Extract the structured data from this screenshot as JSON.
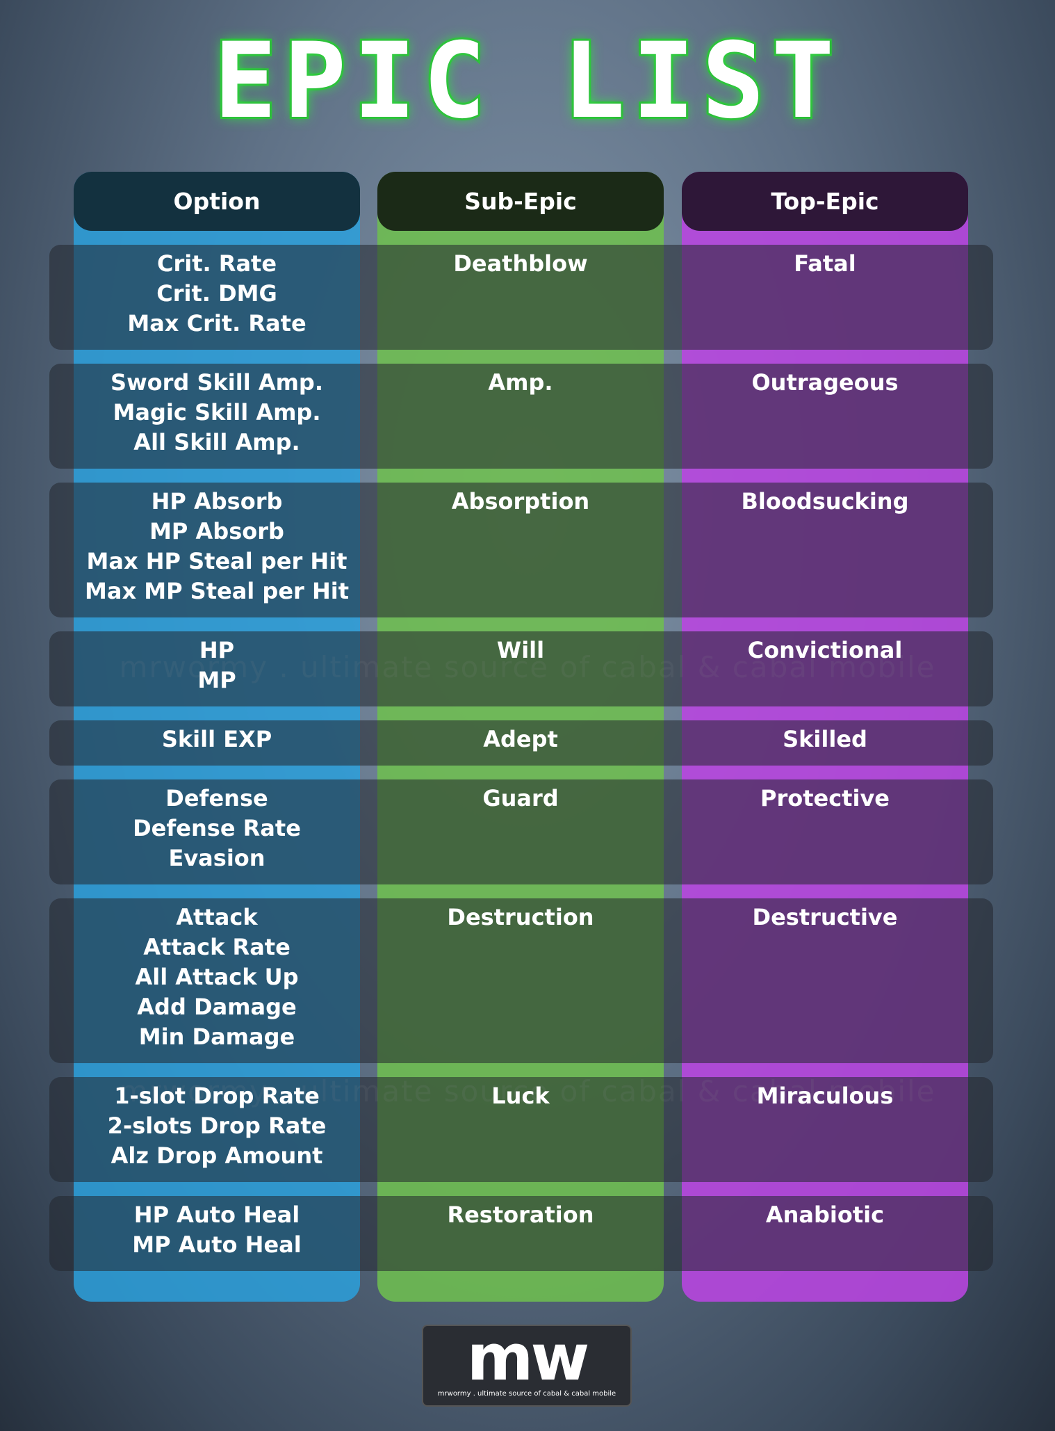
{
  "title": "EPIC LIST",
  "headers": [
    "Option",
    "Sub-Epic",
    "Top-Epic"
  ],
  "rows": [
    {
      "option": [
        "Crit. Rate",
        "Crit. DMG",
        "Max Crit. Rate"
      ],
      "sub_epic": "Deathblow",
      "top_epic": "Fatal"
    },
    {
      "option": [
        "Sword Skill Amp.",
        "Magic Skill Amp.",
        "All Skill Amp."
      ],
      "sub_epic": "Amp.",
      "top_epic": "Outrageous"
    },
    {
      "option": [
        "HP Absorb",
        "MP Absorb",
        "Max HP Steal per Hit",
        "Max MP Steal per Hit"
      ],
      "sub_epic": "Absorption",
      "top_epic": "Bloodsucking"
    },
    {
      "option": [
        "HP",
        "MP"
      ],
      "sub_epic": "Will",
      "top_epic": "Convictional"
    },
    {
      "option": [
        "Skill EXP"
      ],
      "sub_epic": "Adept",
      "top_epic": "Skilled"
    },
    {
      "option": [
        "Defense",
        "Defense Rate",
        "Evasion"
      ],
      "sub_epic": "Guard",
      "top_epic": "Protective"
    },
    {
      "option": [
        "Attack",
        "Attack Rate",
        "All Attack Up",
        "Add Damage",
        "Min Damage"
      ],
      "sub_epic": "Destruction",
      "top_epic": "Destructive"
    },
    {
      "option": [
        "1-slot Drop Rate",
        "2-slots Drop Rate",
        "Alz Drop Amount"
      ],
      "sub_epic": "Luck",
      "top_epic": "Miraculous"
    },
    {
      "option": [
        "HP Auto Heal",
        "MP Auto Heal"
      ],
      "sub_epic": "Restoration",
      "top_epic": "Anabiotic"
    }
  ],
  "watermark": "mrwormy . ultimate source of cabal & cabal mobile",
  "logo": {
    "mark": "mw",
    "tagline": "mrwormy . ultimate source of cabal & cabal mobile"
  }
}
